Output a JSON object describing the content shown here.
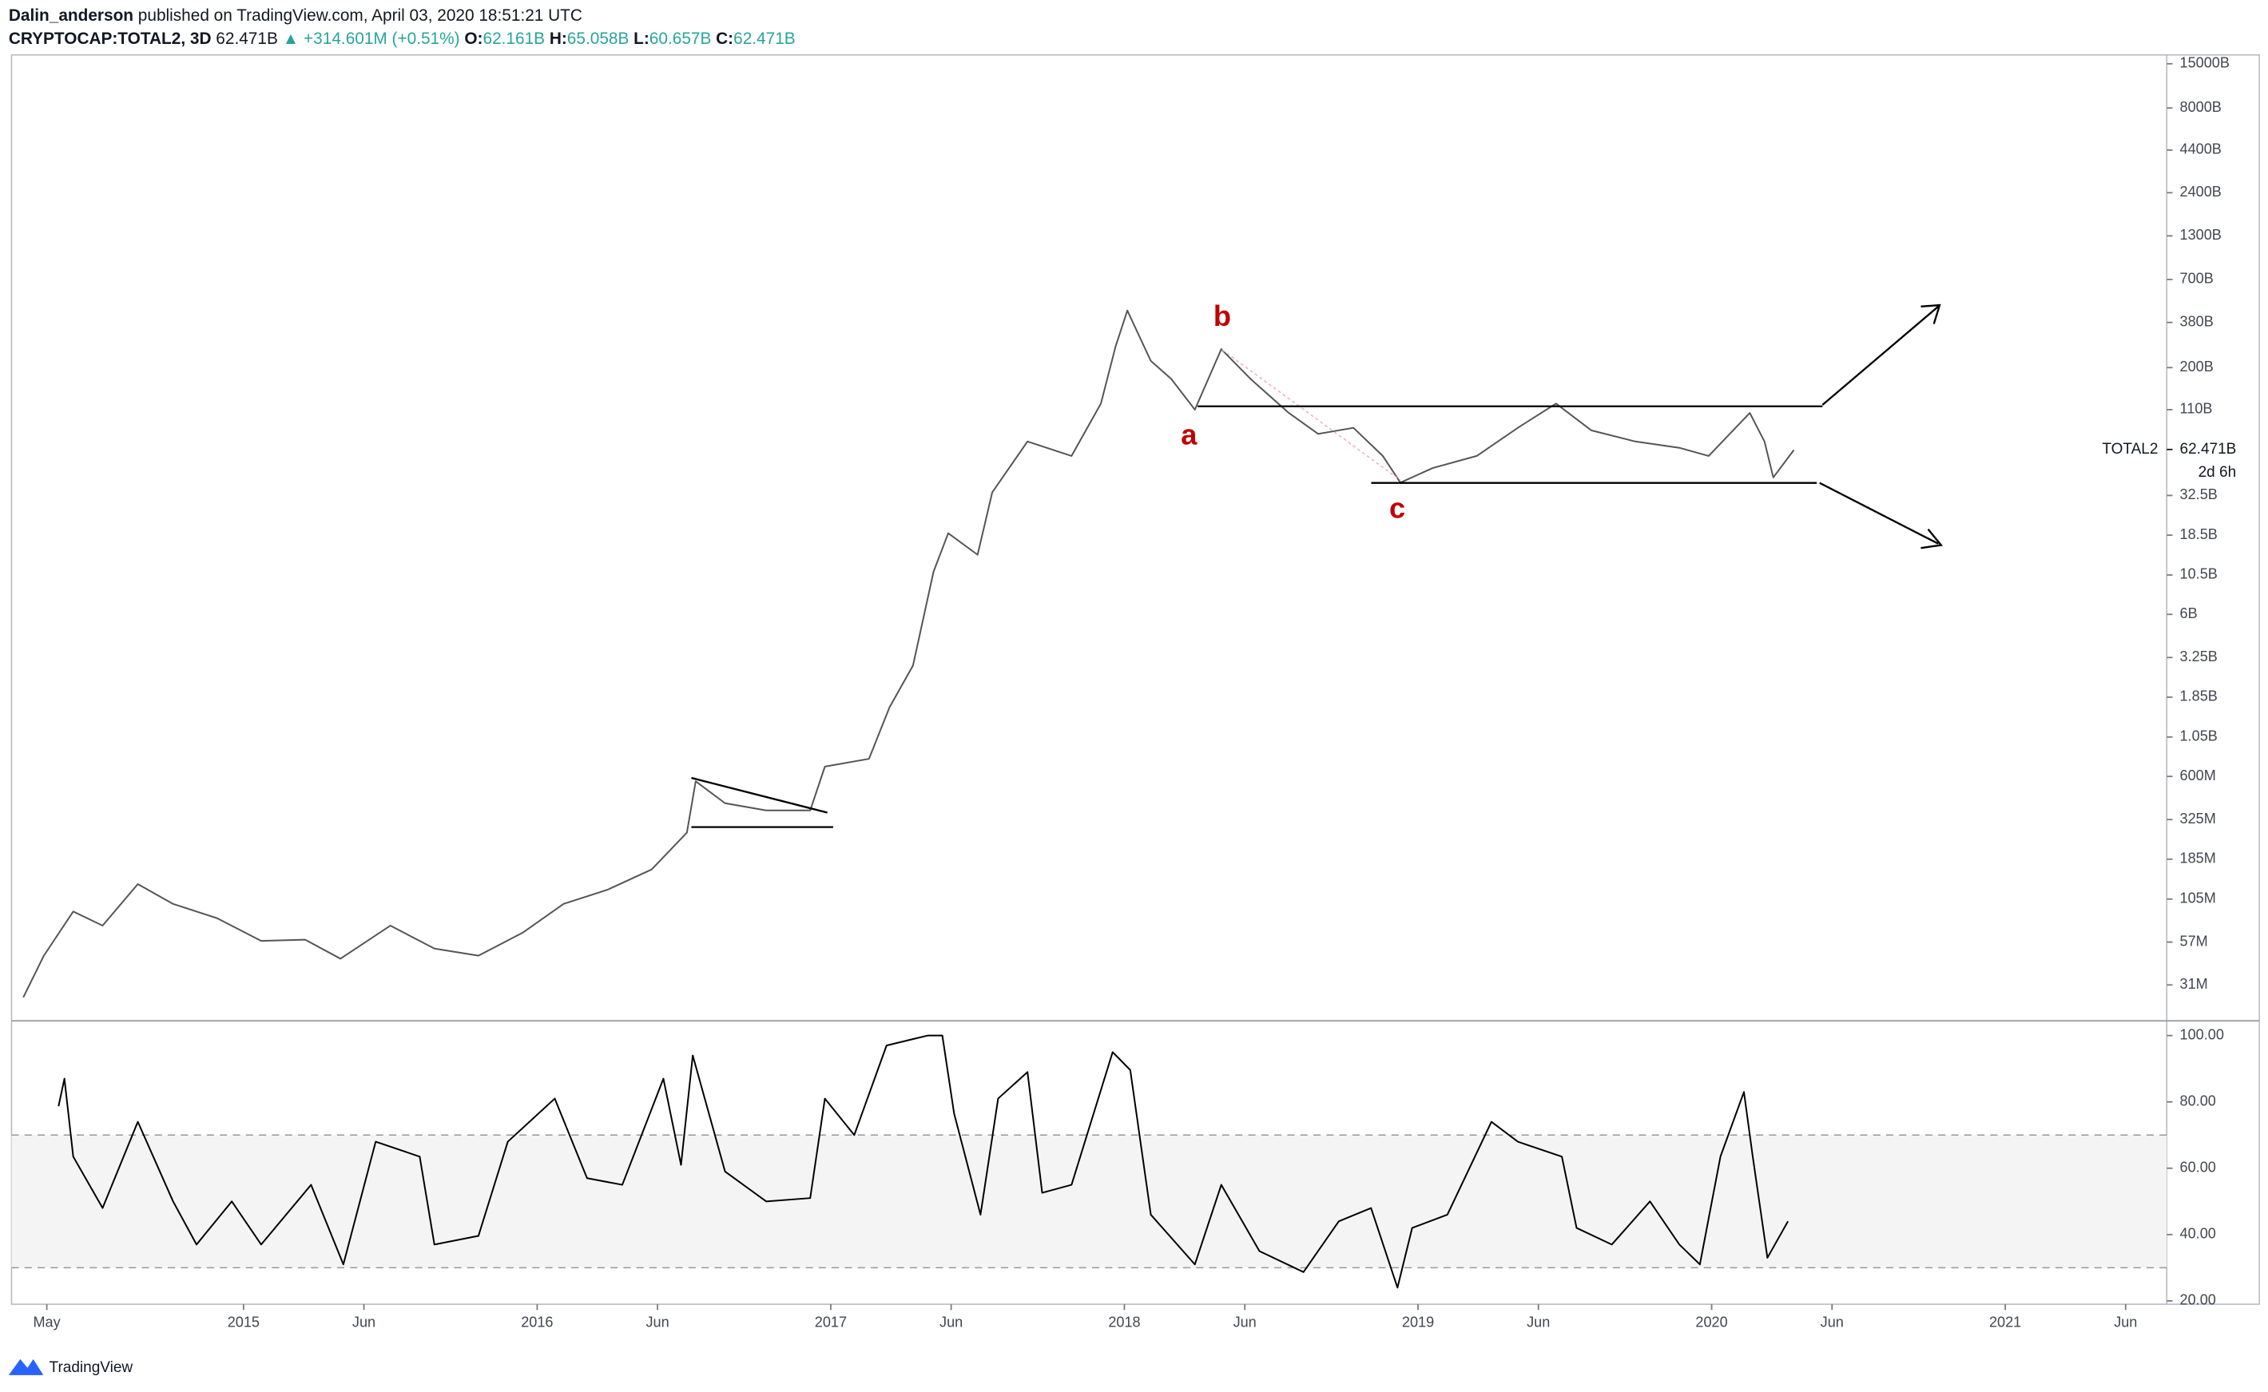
{
  "header": {
    "author": "Dalin_anderson",
    "published": "published on TradingView.com, April 03, 2020 18:51:21 UTC",
    "symbol": "CRYPTOCAP:TOTAL2, 3D",
    "price": "62.471B",
    "change": "▲ +314.601M (+0.51%)",
    "open_label": "O:",
    "open": "62.161B",
    "high_label": "H:",
    "high": "65.058B",
    "low_label": "L:",
    "low": "60.657B",
    "close_label": "C:",
    "close": "62.471B"
  },
  "footer": {
    "brand": "TradingView"
  },
  "chart_data": [
    {
      "type": "line",
      "name": "TOTAL2",
      "color": "#555555",
      "ylog": true,
      "annotations": [
        "a",
        "b",
        "c"
      ],
      "countdown": "2d 6h",
      "last_price": {
        "value": 62471000000,
        "label": "62.471B"
      },
      "xlim": [
        2014.21,
        2021.55
      ],
      "ylim": [
        19000000.0,
        17000000000000.0
      ],
      "yticks": [
        {
          "value": 15000000000000.0,
          "label": "15000B"
        },
        {
          "value": 8000000000000.0,
          "label": "8000B"
        },
        {
          "value": 4400000000000.0,
          "label": "4400B"
        },
        {
          "value": 2400000000000.0,
          "label": "2400B"
        },
        {
          "value": 1300000000000.0,
          "label": "1300B"
        },
        {
          "value": 700000000000.0,
          "label": "700B"
        },
        {
          "value": 380000000000.0,
          "label": "380B"
        },
        {
          "value": 200000000000.0,
          "label": "200B"
        },
        {
          "value": 110000000000.0,
          "label": "110B"
        },
        {
          "value": 32500000000.0,
          "label": "32.5B"
        },
        {
          "value": 18500000000.0,
          "label": "18.5B"
        },
        {
          "value": 10500000000.0,
          "label": "10.5B"
        },
        {
          "value": 6000000000.0,
          "label": "6B"
        },
        {
          "value": 3250000000.0,
          "label": "3.25B"
        },
        {
          "value": 1850000000.0,
          "label": "1.85B"
        },
        {
          "value": 1050000000.0,
          "label": "1.05B"
        },
        {
          "value": 600000000.0,
          "label": "600M"
        },
        {
          "value": 325000000.0,
          "label": "325M"
        },
        {
          "value": 185000000.0,
          "label": "185M"
        },
        {
          "value": 105000000.0,
          "label": "105M"
        },
        {
          "value": 57000000.0,
          "label": "57M"
        },
        {
          "value": 31000000.0,
          "label": "31M"
        }
      ],
      "x": [
        2014.25,
        2014.32,
        2014.42,
        2014.52,
        2014.64,
        2014.76,
        2014.91,
        2015.06,
        2015.21,
        2015.33,
        2015.5,
        2015.65,
        2015.8,
        2015.95,
        2016.09,
        2016.24,
        2016.39,
        2016.51,
        2016.54,
        2016.64,
        2016.78,
        2016.93,
        2016.98,
        2017.13,
        2017.2,
        2017.28,
        2017.35,
        2017.4,
        2017.5,
        2017.55,
        2017.67,
        2017.82,
        2017.92,
        2017.97,
        2018.01,
        2018.09,
        2018.16,
        2018.24,
        2018.33,
        2018.43,
        2018.56,
        2018.66,
        2018.78,
        2018.88,
        2018.94,
        2019.05,
        2019.2,
        2019.34,
        2019.47,
        2019.59,
        2019.74,
        2019.89,
        2019.99,
        2020.13,
        2020.18,
        2020.21,
        2020.28
      ],
      "values": [
        26000000.0,
        47000000.0,
        88000000.0,
        72000000.0,
        130000000.0,
        98000000.0,
        80000000.0,
        58000000.0,
        59000000.0,
        45000000.0,
        72000000.0,
        52000000.0,
        47000000.0,
        65000000.0,
        98000000.0,
        120000000.0,
        160000000.0,
        270000000.0,
        560000000.0,
        410000000.0,
        370000000.0,
        370000000.0,
        690000000.0,
        770000000.0,
        1600000000.0,
        2900000000.0,
        11000000000.0,
        19000000000.0,
        14000000000.0,
        34000000000.0,
        70000000000.0,
        57000000000.0,
        120000000000.0,
        270000000000.0,
        450000000000.0,
        220000000000.0,
        170000000000.0,
        110000000000.0,
        260000000000.0,
        170000000000.0,
        105000000000.0,
        78000000000.0,
        85000000000.0,
        57000000000.0,
        39000000000.0,
        48000000000.0,
        57000000000.0,
        85000000000.0,
        120000000000.0,
        82000000000.0,
        70000000000.0,
        64000000000.0,
        57000000000.0,
        105000000000.0,
        70000000000.0,
        42000000000.0,
        62000000000.0
      ]
    },
    {
      "type": "line",
      "color": "#000000",
      "bands": [
        30,
        70
      ],
      "xlim": [
        2014.21,
        2021.55
      ],
      "ylim": [
        19,
        104
      ],
      "yticks": [
        {
          "value": 100,
          "label": "100.00"
        },
        {
          "value": 80,
          "label": "80.00"
        },
        {
          "value": 60,
          "label": "60.00"
        },
        {
          "value": 40,
          "label": "40.00"
        },
        {
          "value": 20,
          "label": "20.00"
        }
      ],
      "xticks": [
        {
          "value": 2014.33,
          "label": "May"
        },
        2015,
        {
          "value": 2015.41,
          "label": "Jun"
        },
        2016,
        {
          "value": 2016.41,
          "label": "Jun"
        },
        2017,
        {
          "value": 2017.41,
          "label": "Jun"
        },
        2018,
        {
          "value": 2018.41,
          "label": "Jun"
        },
        2019,
        {
          "value": 2019.41,
          "label": "Jun"
        },
        2020,
        {
          "value": 2020.41,
          "label": "Jun"
        },
        2021,
        {
          "value": 2021.41,
          "label": "Jun"
        }
      ],
      "x": [
        2014.37,
        2014.39,
        2014.42,
        2014.52,
        2014.64,
        2014.76,
        2014.84,
        2014.96,
        2015.06,
        2015.23,
        2015.34,
        2015.45,
        2015.6,
        2015.65,
        2015.8,
        2015.9,
        2016.06,
        2016.17,
        2016.29,
        2016.43,
        2016.49,
        2016.53,
        2016.64,
        2016.78,
        2016.93,
        2016.98,
        2017.08,
        2017.19,
        2017.33,
        2017.38,
        2017.42,
        2017.51,
        2017.57,
        2017.67,
        2017.72,
        2017.82,
        2017.96,
        2018.02,
        2018.09,
        2018.24,
        2018.33,
        2018.46,
        2018.61,
        2018.73,
        2018.84,
        2018.93,
        2018.98,
        2019.1,
        2019.25,
        2019.34,
        2019.49,
        2019.54,
        2019.66,
        2019.79,
        2019.89,
        2019.96,
        2020.03,
        2020.11,
        2020.14,
        2020.19,
        2020.26
      ],
      "values": [
        78.7,
        87,
        63.5,
        48,
        74,
        50,
        37,
        50,
        37,
        55,
        31,
        68,
        63.5,
        37,
        39.6,
        68,
        81,
        57,
        55,
        87,
        61,
        94,
        59,
        50,
        51,
        81,
        70,
        97,
        100,
        100,
        76.5,
        46,
        81,
        89,
        52.6,
        55,
        95,
        89.6,
        46,
        31,
        55,
        35,
        28.7,
        44,
        48,
        24,
        42,
        46,
        74,
        68,
        63.5,
        42,
        37,
        50,
        37,
        31,
        63.5,
        83,
        63.5,
        33,
        44
      ]
    }
  ]
}
